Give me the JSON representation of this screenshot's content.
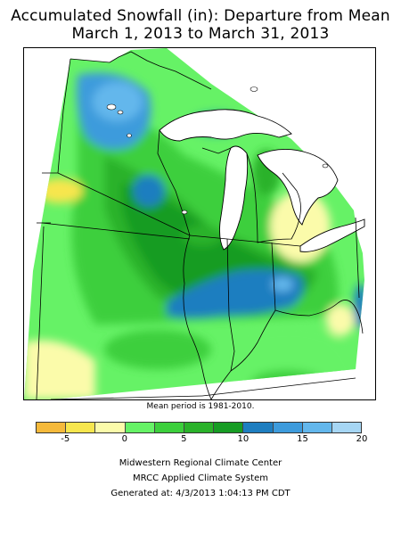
{
  "title_line1": "Accumulated Snowfall (in): Departure from Mean",
  "title_line2": "March 1, 2013 to March 31, 2013",
  "map": {
    "region": "Midwestern United States",
    "note": "Mean period is 1981-2010."
  },
  "colors": {
    "water": "#ffffff",
    "state_lines": "#000000"
  },
  "legend": {
    "bins": [
      {
        "range": "< -5",
        "color": "#f5b93b"
      },
      {
        "range": "-5 to -2.5",
        "color": "#f7e64e"
      },
      {
        "range": "-2.5 to 0",
        "color": "#fbfbaa"
      },
      {
        "range": "0 to 2.5",
        "color": "#66f266"
      },
      {
        "range": "2.5 to 5",
        "color": "#3ccf3c"
      },
      {
        "range": "5 to 7.5",
        "color": "#2ab22a"
      },
      {
        "range": "7.5 to 10",
        "color": "#179c24"
      },
      {
        "range": "10 to 12.5",
        "color": "#1e7ec0"
      },
      {
        "range": "12.5 to 15",
        "color": "#3d9bdc"
      },
      {
        "range": "15 to 17.5",
        "color": "#63b7ec"
      },
      {
        "range": "17.5 to 20",
        "color": "#a6d6f4"
      }
    ],
    "tick_labels": [
      "-5",
      "0",
      "5",
      "10",
      "15",
      "20"
    ],
    "tick_values": [
      -5,
      0,
      5,
      10,
      15,
      20
    ],
    "min": -7.5,
    "max": 20
  },
  "credits": {
    "line1": "Midwestern Regional Climate Center",
    "line2": "MRCC Applied Climate System",
    "line3": "Generated at: 4/3/2013 1:04:13 PM CDT"
  }
}
